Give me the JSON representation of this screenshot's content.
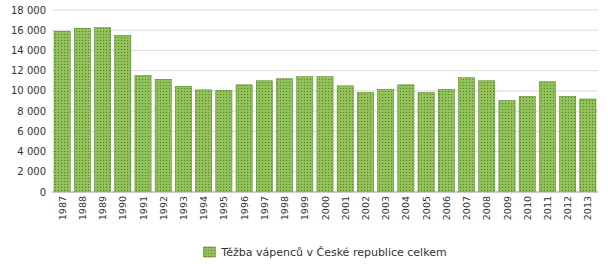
{
  "chart_data": {
    "type": "bar",
    "categories": [
      "1987",
      "1988",
      "1989",
      "1990",
      "1991",
      "1992",
      "1993",
      "1994",
      "1995",
      "1996",
      "1997",
      "1998",
      "1999",
      "2000",
      "2001",
      "2002",
      "2003",
      "2004",
      "2005",
      "2006",
      "2007",
      "2008",
      "2009",
      "2010",
      "2011",
      "2012",
      "2013"
    ],
    "series": [
      {
        "name": "Těžba vápenců v České republice celkem",
        "color": "#92c05a",
        "values": [
          15900,
          16200,
          16250,
          15500,
          11500,
          11150,
          10450,
          10100,
          10050,
          10600,
          11000,
          11200,
          11400,
          11400,
          10500,
          9850,
          10150,
          10600,
          9850,
          10150,
          11300,
          11000,
          9050,
          9450,
          10900,
          9450,
          9200
        ]
      }
    ],
    "ylim": [
      0,
      18000
    ],
    "yticks": [
      0,
      {
        "value": 2000,
        "label": "2 000"
      },
      {
        "value": 4000,
        "label": "4 000"
      },
      {
        "value": 6000,
        "label": "6 000"
      },
      {
        "value": 8000,
        "label": "8 000"
      },
      {
        "value": 10000,
        "label": "10 000"
      },
      {
        "value": 12000,
        "label": "12 000"
      },
      {
        "value": 14000,
        "label": "14 000"
      },
      {
        "value": 16000,
        "label": "16 000"
      },
      {
        "value": 18000,
        "label": "18 000"
      }
    ],
    "grid": true,
    "legend": "bottom"
  }
}
